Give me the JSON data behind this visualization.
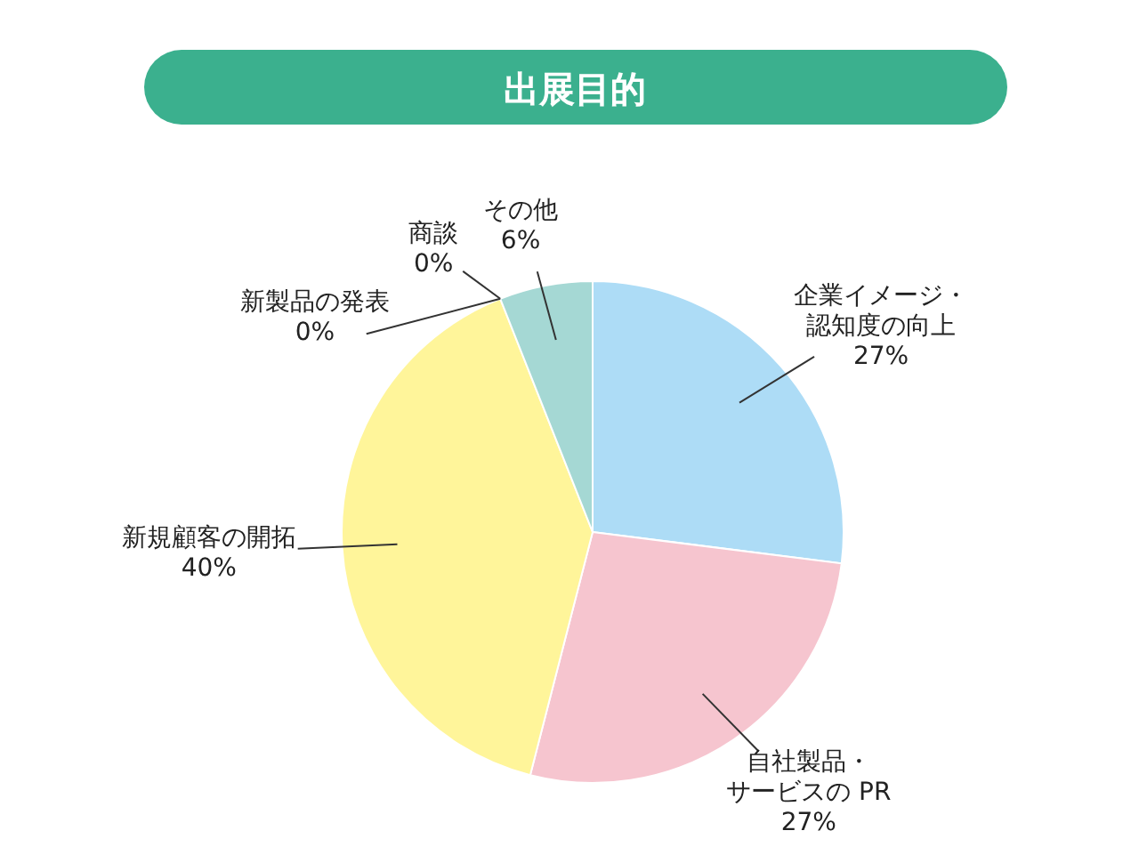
{
  "chart_data": {
    "type": "pie",
    "title": "出展目的",
    "categories": [
      "企業イメージ・認知度の向上",
      "自社製品・サービスの PR",
      "新規顧客の開拓",
      "新製品の発表",
      "商談",
      "その他"
    ],
    "values": [
      27,
      27,
      40,
      0,
      0,
      6
    ],
    "value_labels": [
      "27%",
      "27%",
      "40%",
      "0%",
      "0%",
      "6%"
    ],
    "colors": [
      "#addcf6",
      "#f6c5cf",
      "#fff59a",
      null,
      null,
      "#a5d8d4"
    ]
  }
}
